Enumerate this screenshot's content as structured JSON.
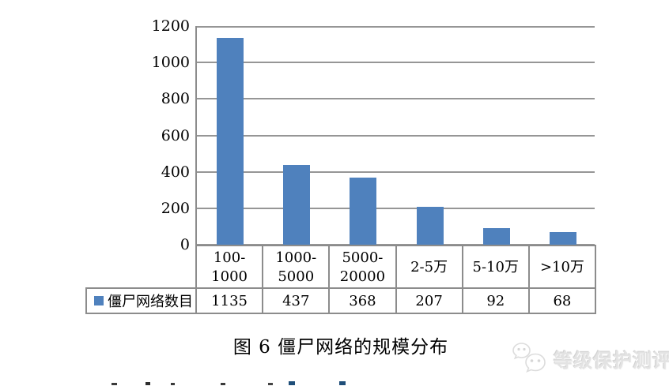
{
  "chart_data": {
    "type": "bar",
    "title": "图 6 僵尸网络的规模分布",
    "series_name": "僵尸网络数目",
    "categories": [
      "100-1000",
      "1000-5000",
      "5000-20000",
      "2-5万",
      "5-10万",
      ">10万"
    ],
    "category_display_lines": [
      [
        "100-",
        "1000"
      ],
      [
        "1000-",
        "5000"
      ],
      [
        "5000-",
        "20000"
      ],
      [
        "2-5万"
      ],
      [
        "5-10万"
      ],
      [
        ">10万"
      ]
    ],
    "values": [
      1135,
      437,
      368,
      207,
      92,
      68
    ],
    "ylim": [
      0,
      1200
    ],
    "yticks": [
      0,
      200,
      400,
      600,
      800,
      1000,
      1200
    ],
    "bar_color": "#4F81BD",
    "gridline_color": "#969696",
    "grid": true,
    "legend_position": "table-left",
    "data_table_shown": true
  },
  "watermark": {
    "text": "等级保护测评",
    "icon": "wechat-chat-bubbles-icon",
    "color": "#e3e3e3"
  }
}
